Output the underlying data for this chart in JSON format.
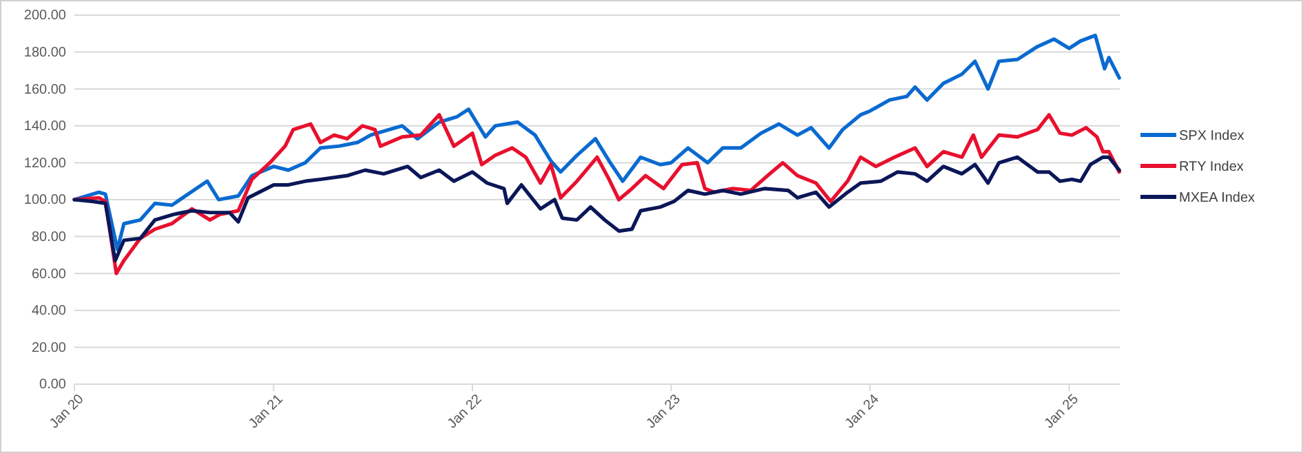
{
  "chart_data": {
    "type": "line",
    "xlim": [
      "2020-01-01",
      "2025-04-04"
    ],
    "xticks": [
      {
        "value": "2020-01-01",
        "label": "Jan 20"
      },
      {
        "value": "2021-01-01",
        "label": "Jan 21"
      },
      {
        "value": "2022-01-01",
        "label": "Jan 22"
      },
      {
        "value": "2023-01-01",
        "label": "Jan 23"
      },
      {
        "value": "2024-01-01",
        "label": "Jan 24"
      },
      {
        "value": "2025-01-01",
        "label": "Jan 25"
      }
    ],
    "ylim": [
      0,
      200
    ],
    "yticks": [
      {
        "value": 0,
        "label": "0.00"
      },
      {
        "value": 20,
        "label": "20.00"
      },
      {
        "value": 40,
        "label": "40.00"
      },
      {
        "value": 60,
        "label": "60.00"
      },
      {
        "value": 80,
        "label": "80.00"
      },
      {
        "value": 100,
        "label": "100.00"
      },
      {
        "value": 120,
        "label": "120.00"
      },
      {
        "value": 140,
        "label": "140.00"
      },
      {
        "value": 160,
        "label": "160.00"
      },
      {
        "value": 180,
        "label": "180.00"
      },
      {
        "value": 200,
        "label": "200.00"
      }
    ],
    "grid": "y",
    "legend": "right",
    "marker": "none",
    "line_style": "solid",
    "series": [
      {
        "name": "SPX Index",
        "color": "#0a6ad0",
        "x": [
          "2020-01-01",
          "2020-02-15",
          "2020-02-27",
          "2020-03-20",
          "2020-04-01",
          "2020-05-01",
          "2020-05-28",
          "2020-06-28",
          "2020-07-28",
          "2020-09-01",
          "2020-09-22",
          "2020-10-28",
          "2020-11-22",
          "2021-01-01",
          "2021-01-28",
          "2021-02-28",
          "2021-03-28",
          "2021-05-01",
          "2021-06-04",
          "2021-06-28",
          "2021-08-01",
          "2021-08-25",
          "2021-09-22",
          "2021-11-01",
          "2021-12-04",
          "2021-12-25",
          "2022-01-25",
          "2022-02-12",
          "2022-03-25",
          "2022-04-26",
          "2022-05-25",
          "2022-06-12",
          "2022-07-12",
          "2022-08-15",
          "2022-09-09",
          "2022-10-04",
          "2022-11-06",
          "2022-12-12",
          "2023-01-01",
          "2023-02-01",
          "2023-03-09",
          "2023-04-06",
          "2023-05-09",
          "2023-06-15",
          "2023-07-18",
          "2023-08-21",
          "2023-09-15",
          "2023-10-18",
          "2023-11-12",
          "2023-12-15",
          "2024-01-01",
          "2024-02-06",
          "2024-03-09",
          "2024-03-24",
          "2024-04-15",
          "2024-05-15",
          "2024-06-18",
          "2024-07-12",
          "2024-08-05",
          "2024-08-25",
          "2024-09-28",
          "2024-11-04",
          "2024-12-04",
          "2025-01-01",
          "2025-01-22",
          "2025-02-18",
          "2025-03-07",
          "2025-03-15",
          "2025-04-03"
        ],
        "values": [
          100,
          104,
          103,
          73,
          87,
          89,
          98,
          97,
          103,
          110,
          100,
          102,
          113,
          118,
          116,
          120,
          128,
          129,
          131,
          135,
          138,
          140,
          133,
          142,
          145,
          149,
          134,
          140,
          142,
          135,
          121,
          115,
          124,
          133,
          121,
          110,
          123,
          119,
          120,
          128,
          120,
          128,
          128,
          136,
          141,
          135,
          139,
          128,
          138,
          146,
          148,
          154,
          156,
          161,
          154,
          163,
          168,
          175,
          160,
          175,
          176,
          183,
          187,
          182,
          186,
          189,
          171,
          177,
          166
        ]
      },
      {
        "name": "RTY Index",
        "color": "#e8102e",
        "x": [
          "2020-01-01",
          "2020-02-15",
          "2020-02-27",
          "2020-03-18",
          "2020-04-01",
          "2020-05-01",
          "2020-05-28",
          "2020-06-28",
          "2020-08-04",
          "2020-09-06",
          "2020-09-24",
          "2020-10-28",
          "2020-11-22",
          "2020-12-25",
          "2021-01-22",
          "2021-02-06",
          "2021-03-10",
          "2021-03-28",
          "2021-04-22",
          "2021-05-16",
          "2021-06-13",
          "2021-07-06",
          "2021-07-16",
          "2021-08-25",
          "2021-09-28",
          "2021-11-01",
          "2021-11-28",
          "2022-01-01",
          "2022-01-18",
          "2022-02-12",
          "2022-03-15",
          "2022-04-09",
          "2022-05-06",
          "2022-05-25",
          "2022-06-12",
          "2022-07-12",
          "2022-08-18",
          "2022-09-09",
          "2022-09-27",
          "2022-10-21",
          "2022-11-15",
          "2022-12-18",
          "2023-01-21",
          "2023-02-18",
          "2023-03-04",
          "2023-03-21",
          "2023-04-24",
          "2023-05-27",
          "2023-07-01",
          "2023-07-25",
          "2023-08-21",
          "2023-09-24",
          "2023-10-21",
          "2023-11-21",
          "2023-12-15",
          "2024-01-12",
          "2024-02-15",
          "2024-03-24",
          "2024-04-15",
          "2024-05-15",
          "2024-06-18",
          "2024-07-09",
          "2024-07-24",
          "2024-08-25",
          "2024-09-28",
          "2024-11-04",
          "2024-11-25",
          "2024-12-15",
          "2025-01-06",
          "2025-02-01",
          "2025-02-21",
          "2025-03-04",
          "2025-03-15",
          "2025-04-03"
        ],
        "values": [
          100,
          101,
          99,
          60,
          67,
          79,
          84,
          87,
          95,
          89,
          92,
          94,
          111,
          120,
          129,
          138,
          141,
          131,
          135,
          133,
          140,
          138,
          129,
          134,
          135,
          146,
          129,
          136,
          119,
          124,
          128,
          123,
          109,
          119,
          101,
          110,
          123,
          111,
          100,
          106,
          113,
          106,
          119,
          120,
          106,
          104,
          106,
          105,
          114,
          120,
          113,
          109,
          99,
          110,
          123,
          118,
          123,
          128,
          118,
          126,
          123,
          135,
          123,
          135,
          134,
          138,
          146,
          136,
          135,
          139,
          134,
          126,
          126,
          115
        ]
      },
      {
        "name": "MXEA Index",
        "color": "#0b1758",
        "x": [
          "2020-01-01",
          "2020-02-04",
          "2020-02-27",
          "2020-03-16",
          "2020-04-01",
          "2020-05-01",
          "2020-05-28",
          "2020-07-01",
          "2020-08-04",
          "2020-09-06",
          "2020-10-12",
          "2020-10-28",
          "2020-11-15",
          "2021-01-01",
          "2021-01-28",
          "2021-02-28",
          "2021-03-28",
          "2021-05-16",
          "2021-06-18",
          "2021-07-22",
          "2021-09-04",
          "2021-09-28",
          "2021-11-01",
          "2021-11-28",
          "2022-01-01",
          "2022-01-28",
          "2022-02-28",
          "2022-03-06",
          "2022-04-01",
          "2022-05-06",
          "2022-06-01",
          "2022-06-15",
          "2022-07-12",
          "2022-08-06",
          "2022-09-01",
          "2022-09-27",
          "2022-10-21",
          "2022-11-06",
          "2022-12-12",
          "2023-01-06",
          "2023-02-01",
          "2023-03-04",
          "2023-04-06",
          "2023-05-09",
          "2023-06-21",
          "2023-08-04",
          "2023-08-21",
          "2023-09-24",
          "2023-10-18",
          "2023-11-21",
          "2023-12-15",
          "2024-01-21",
          "2024-02-21",
          "2024-03-24",
          "2024-04-15",
          "2024-05-15",
          "2024-06-18",
          "2024-07-12",
          "2024-08-05",
          "2024-08-25",
          "2024-09-28",
          "2024-11-04",
          "2024-11-25",
          "2024-12-15",
          "2025-01-06",
          "2025-01-22",
          "2025-02-09",
          "2025-03-04",
          "2025-03-15",
          "2025-04-03"
        ],
        "values": [
          100,
          99,
          98,
          67,
          78,
          79,
          89,
          92,
          94,
          93,
          93,
          88,
          101,
          108,
          108,
          110,
          111,
          113,
          116,
          114,
          118,
          112,
          116,
          110,
          115,
          109,
          106,
          98,
          108,
          95,
          100,
          90,
          89,
          96,
          89,
          83,
          84,
          94,
          96,
          99,
          105,
          103,
          105,
          103,
          106,
          105,
          101,
          104,
          96,
          104,
          109,
          110,
          115,
          114,
          110,
          118,
          114,
          119,
          109,
          120,
          123,
          115,
          115,
          110,
          111,
          110,
          119,
          123,
          123,
          116
        ]
      }
    ]
  }
}
